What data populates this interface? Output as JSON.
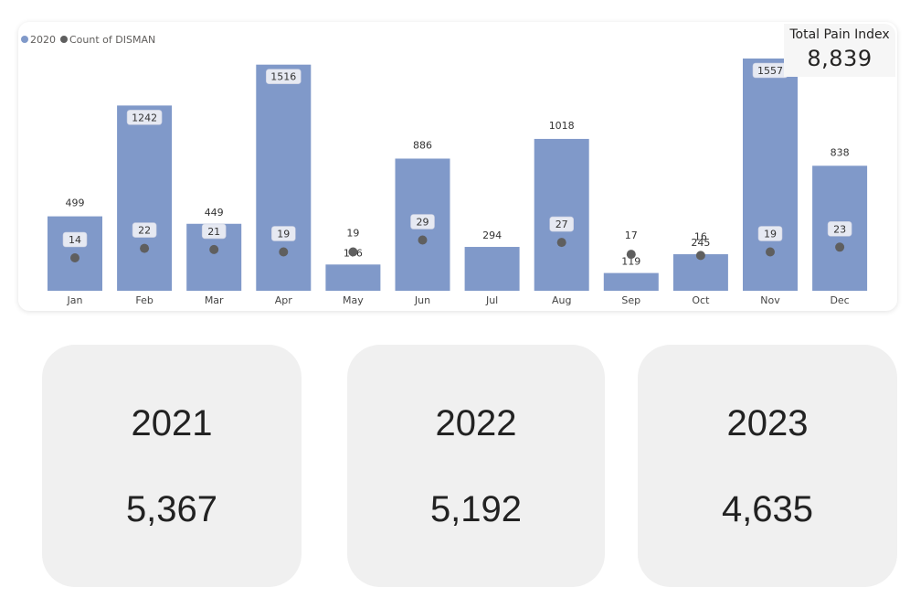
{
  "chart_data": {
    "type": "bar",
    "categories": [
      "Jan",
      "Feb",
      "Mar",
      "Apr",
      "May",
      "Jun",
      "Jul",
      "Aug",
      "Sep",
      "Oct",
      "Nov",
      "Dec"
    ],
    "series": [
      {
        "name": "2020",
        "type": "bar",
        "color": "#8099c9",
        "values": [
          499,
          1242,
          449,
          1516,
          176,
          886,
          294,
          1018,
          119,
          245,
          1557,
          838
        ]
      },
      {
        "name": "Count of DISMAN",
        "type": "scatter",
        "color": "#5f5f5f",
        "values": [
          14,
          22,
          21,
          19,
          19,
          29,
          null,
          27,
          17,
          16,
          19,
          23
        ]
      }
    ],
    "legend_position": "top-left",
    "grid": false
  },
  "kpi": {
    "title": "Total Pain Index",
    "value": "8,839"
  },
  "year_cards": [
    {
      "year": "2021",
      "value": "5,367"
    },
    {
      "year": "2022",
      "value": "5,192"
    },
    {
      "year": "2023",
      "value": "4,635"
    }
  ]
}
